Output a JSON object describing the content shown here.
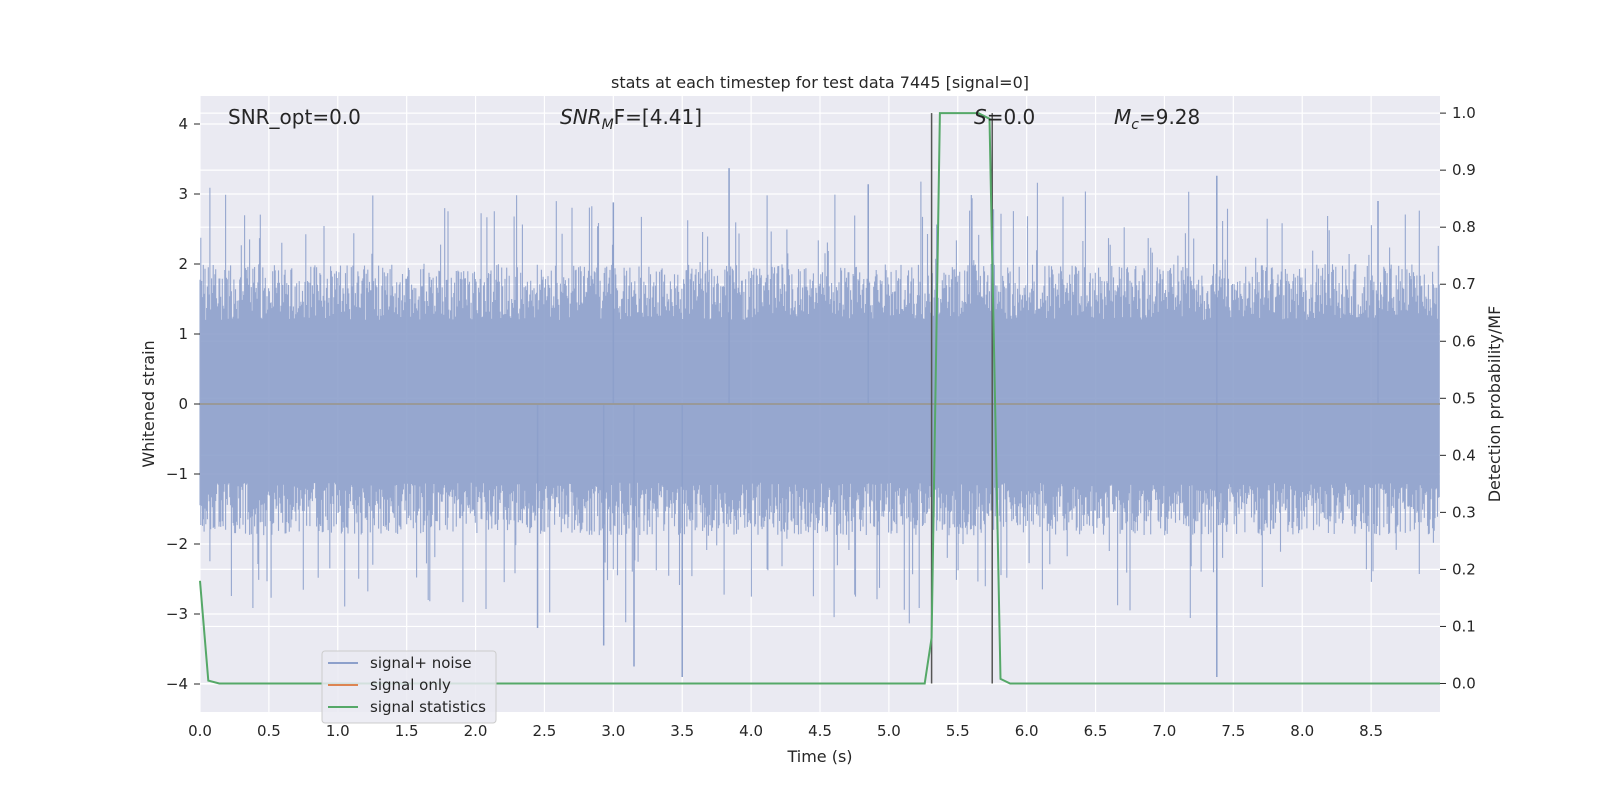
{
  "chart_data": {
    "type": "line",
    "title": "stats at each timestep for test data 7445 [signal=0]",
    "xlabel": "Time (s)",
    "ylabel_left": "Whitened strain",
    "ylabel_right": "Detection probability/MF",
    "xlim": [
      0.0,
      9.0
    ],
    "ylim_left": [
      -4.4,
      4.4
    ],
    "ylim_right": [
      -0.05,
      1.03
    ],
    "x_ticks": [
      0.0,
      0.5,
      1.0,
      1.5,
      2.0,
      2.5,
      3.0,
      3.5,
      4.0,
      4.5,
      5.0,
      5.5,
      6.0,
      6.5,
      7.0,
      7.5,
      8.0,
      8.5
    ],
    "y_left_ticks": [
      -4,
      -3,
      -2,
      -1,
      0,
      1,
      2,
      3,
      4
    ],
    "y_right_ticks": [
      0.0,
      0.1,
      0.2,
      0.3,
      0.4,
      0.5,
      0.6,
      0.7,
      0.8,
      0.9,
      1.0
    ],
    "grid": true,
    "legend_position": "lower-left",
    "annotations": {
      "snr_opt": "SNR_opt=0.0",
      "snr_mf_italic": "SNR",
      "snr_mf_sub": "M",
      "snr_mf_tail": "F=[4.41]",
      "s_italic": "S",
      "s_tail": "=0.0",
      "mc_italic": "M",
      "mc_sub": "c",
      "mc_tail": "=9.28"
    },
    "series": [
      {
        "name": "signal+ noise",
        "color": "#8da0cb",
        "style": "dense noise",
        "x_range": [
          0.0,
          9.0
        ],
        "envelope_typical": [
          -1.5,
          1.6
        ],
        "peaks": [
          {
            "x": 3.84,
            "y": 3.37
          },
          {
            "x": 7.38,
            "y": 3.26
          },
          {
            "x": 3.0,
            "y": 2.88
          },
          {
            "x": 4.85,
            "y": 3.14
          },
          {
            "x": 8.55,
            "y": 2.9
          }
        ],
        "troughs": [
          {
            "x": 3.5,
            "y": -3.9
          },
          {
            "x": 7.38,
            "y": -3.9
          },
          {
            "x": 3.15,
            "y": -3.75
          },
          {
            "x": 2.93,
            "y": -3.45
          },
          {
            "x": 2.45,
            "y": -3.2
          }
        ]
      },
      {
        "name": "signal only",
        "color": "#dd8452",
        "values": []
      },
      {
        "name": "signal statistics",
        "color": "#55a868",
        "x": [
          0.0,
          0.06,
          0.14,
          0.5,
          1.0,
          2.0,
          3.0,
          4.0,
          5.0,
          5.26,
          5.31,
          5.37,
          5.5,
          5.65,
          5.73,
          5.81,
          5.88,
          6.0,
          7.0,
          8.0,
          9.0
        ],
        "values": [
          0.18,
          0.005,
          0.0,
          0.0,
          0.0,
          0.0,
          0.0,
          0.0,
          0.0,
          0.0,
          0.08,
          1.0,
          1.0,
          1.0,
          0.99,
          0.008,
          0.0,
          0.0,
          0.0,
          0.0,
          0.0
        ]
      }
    ],
    "vertical_markers": [
      {
        "x": 5.31,
        "color": "#555555",
        "y_right": [
          0.0,
          1.0
        ]
      },
      {
        "x": 5.75,
        "color": "#555555",
        "y_right": [
          0.0,
          1.0
        ]
      }
    ]
  }
}
